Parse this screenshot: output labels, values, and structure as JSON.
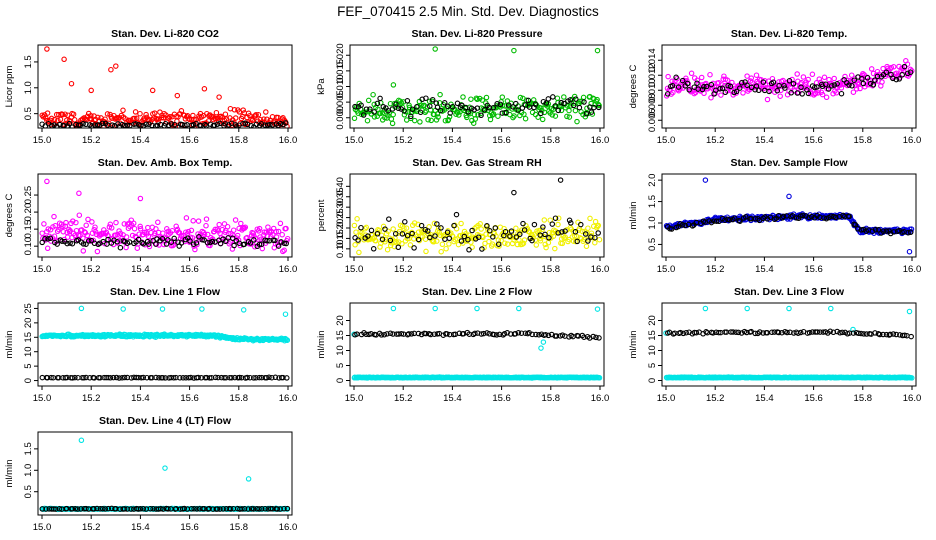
{
  "figure": {
    "title": "FEF_070415  2.5 Min. Std. Dev. Diagnostics"
  },
  "chart_data": [
    {
      "key": "co2",
      "type": "scatter",
      "title": "Stan. Dev. Li-820 CO2",
      "ylabel": "Licor ppm",
      "xlim": [
        15.0,
        16.0
      ],
      "ylim": [
        0.3,
        1.75
      ],
      "xticks": [
        15.0,
        15.2,
        15.4,
        15.6,
        15.8,
        16.0
      ],
      "yticks": [
        0.5,
        1.0,
        1.5
      ],
      "ytick_labels": [
        "0.5",
        "1.0",
        "1.5"
      ],
      "series": [
        {
          "name": "red",
          "color": "#ff0000",
          "gen": {
            "base": [
              [
                15.0,
                0.4
              ],
              [
                16.0,
                0.4
              ]
            ],
            "noise": 0.12,
            "spikes": [
              [
                15.02,
                1.75
              ],
              [
                15.09,
                1.55
              ],
              [
                15.28,
                1.35
              ],
              [
                15.3,
                1.42
              ],
              [
                15.12,
                1.08
              ],
              [
                15.2,
                0.95
              ],
              [
                15.45,
                0.95
              ],
              [
                15.55,
                0.85
              ],
              [
                15.66,
                0.98
              ],
              [
                15.72,
                0.82
              ]
            ],
            "n": 230,
            "seed": 3
          }
        },
        {
          "name": "black",
          "color": "#000000",
          "gen": {
            "base": [
              [
                15.0,
                0.28
              ],
              [
                16.0,
                0.28
              ]
            ],
            "noise": 0.03,
            "n": 90,
            "seed": 4
          }
        }
      ]
    },
    {
      "key": "pressure",
      "type": "scatter",
      "title": "Stan. Dev. Li-820 Pressure",
      "ylabel": "kPa",
      "xlim": [
        15.0,
        16.0
      ],
      "ylim": [
        -0.002,
        0.022
      ],
      "xticks": [
        15.0,
        15.2,
        15.4,
        15.6,
        15.8,
        16.0
      ],
      "yticks": [
        0.0,
        0.005,
        0.01,
        0.015,
        0.02
      ],
      "ytick_labels": [
        "0.000",
        "0.005",
        "0.010",
        "0.015",
        "0.020"
      ],
      "series": [
        {
          "name": "green",
          "color": "#00bb00",
          "gen": {
            "base": [
              [
                15.0,
                0.0025
              ],
              [
                16.0,
                0.0035
              ]
            ],
            "noise": 0.0032,
            "spikes": [
              [
                15.16,
                0.0105
              ],
              [
                15.33,
                0.022
              ],
              [
                15.65,
                0.0215
              ],
              [
                15.99,
                0.0215
              ]
            ],
            "n": 240,
            "seed": 7
          }
        },
        {
          "name": "black",
          "color": "#000000",
          "gen": {
            "base": [
              [
                15.0,
                0.0028
              ],
              [
                16.0,
                0.0035
              ]
            ],
            "noise": 0.0025,
            "n": 80,
            "seed": 8
          }
        }
      ]
    },
    {
      "key": "temp",
      "type": "scatter",
      "title": "Stan. Dev. Li-820 Temp.",
      "ylabel": "degrees C",
      "xlim": [
        15.0,
        16.0
      ],
      "ylim": [
        0.0055,
        0.0155
      ],
      "xticks": [
        15.0,
        15.2,
        15.4,
        15.6,
        15.8,
        16.0
      ],
      "yticks": [
        0.006,
        0.008,
        0.01,
        0.012,
        0.014
      ],
      "ytick_labels": [
        "0.006",
        "0.008",
        "0.010",
        "0.012",
        "0.014"
      ],
      "series": [
        {
          "name": "magenta",
          "color": "#ff00ff",
          "gen": {
            "base": [
              [
                15.0,
                0.0105
              ],
              [
                15.7,
                0.0105
              ],
              [
                16.0,
                0.0128
              ]
            ],
            "noise": 0.0012,
            "n": 260,
            "seed": 11
          }
        },
        {
          "name": "black",
          "color": "#000000",
          "gen": {
            "base": [
              [
                15.0,
                0.0105
              ],
              [
                15.7,
                0.0104
              ],
              [
                16.0,
                0.0128
              ]
            ],
            "noise": 0.0009,
            "n": 85,
            "seed": 12
          }
        }
      ]
    },
    {
      "key": "ambbox",
      "type": "scatter",
      "title": "Stan. Dev. Amb. Box Temp.",
      "ylabel": "degrees C",
      "xlim": [
        15.0,
        16.0
      ],
      "ylim": [
        0.08,
        0.3
      ],
      "xticks": [
        15.0,
        15.2,
        15.4,
        15.6,
        15.8,
        16.0
      ],
      "yticks": [
        0.1,
        0.15,
        0.2,
        0.25
      ],
      "ytick_labels": [
        "0.10",
        "0.15",
        "0.20",
        "0.25"
      ],
      "series": [
        {
          "name": "magenta",
          "color": "#ff00ff",
          "gen": {
            "base": [
              [
                15.0,
                0.14
              ],
              [
                16.0,
                0.13
              ]
            ],
            "noise": 0.035,
            "spikes": [
              [
                15.02,
                0.29
              ],
              [
                15.15,
                0.255
              ],
              [
                15.4,
                0.24
              ]
            ],
            "n": 280,
            "seed": 15
          }
        },
        {
          "name": "black",
          "color": "#000000",
          "gen": {
            "base": [
              [
                15.0,
                0.112
              ],
              [
                16.0,
                0.112
              ]
            ],
            "noise": 0.01,
            "n": 90,
            "seed": 16
          }
        }
      ]
    },
    {
      "key": "rh",
      "type": "scatter",
      "title": "Stan. Dev. Gas Stream RH",
      "ylabel": "percent",
      "xlim": [
        15.0,
        16.0
      ],
      "ylim": [
        0.08,
        0.44
      ],
      "xticks": [
        15.0,
        15.2,
        15.4,
        15.6,
        15.8,
        16.0
      ],
      "yticks": [
        0.1,
        0.15,
        0.2,
        0.25,
        0.3,
        0.35,
        0.4
      ],
      "ytick_labels": [
        "0.10",
        "0.15",
        "0.20",
        "0.25",
        "0.30",
        "0.35",
        "0.40"
      ],
      "series": [
        {
          "name": "yellow",
          "color": "#f0f000",
          "gen": {
            "base": [
              [
                15.0,
                0.16
              ],
              [
                16.0,
                0.17
              ]
            ],
            "noise": 0.055,
            "n": 260,
            "seed": 19
          }
        },
        {
          "name": "black",
          "color": "#000000",
          "gen": {
            "base": [
              [
                15.0,
                0.17
              ],
              [
                16.0,
                0.18
              ]
            ],
            "noise": 0.055,
            "spikes": [
              [
                15.84,
                0.43
              ],
              [
                15.65,
                0.37
              ]
            ],
            "n": 75,
            "seed": 20
          }
        }
      ]
    },
    {
      "key": "sampleflow",
      "type": "scatter",
      "title": "Stan. Dev. Sample Flow",
      "ylabel": "ml/min",
      "xlim": [
        15.0,
        16.0
      ],
      "ylim": [
        0.3,
        2.05
      ],
      "xticks": [
        15.0,
        15.2,
        15.4,
        15.6,
        15.8,
        16.0
      ],
      "yticks": [
        0.5,
        1.0,
        1.5,
        2.0
      ],
      "ytick_labels": [
        "0.5",
        "1.0",
        "1.5",
        "2.0"
      ],
      "series": [
        {
          "name": "blue",
          "color": "#0000dd",
          "gen": {
            "base": [
              [
                15.0,
                0.9
              ],
              [
                15.2,
                1.08
              ],
              [
                15.5,
                1.15
              ],
              [
                15.74,
                1.15
              ],
              [
                15.79,
                0.82
              ],
              [
                16.0,
                0.82
              ]
            ],
            "noise": 0.045,
            "spikes": [
              [
                15.16,
                2.0
              ],
              [
                15.5,
                1.62
              ],
              [
                15.99,
                0.33
              ]
            ],
            "n": 300,
            "seed": 23
          }
        },
        {
          "name": "black",
          "color": "#000000",
          "gen": {
            "base": [
              [
                15.0,
                0.88
              ],
              [
                15.2,
                1.06
              ],
              [
                15.5,
                1.14
              ],
              [
                15.74,
                1.14
              ],
              [
                15.79,
                0.82
              ],
              [
                16.0,
                0.8
              ]
            ],
            "noise": 0.04,
            "n": 90,
            "seed": 24
          }
        }
      ]
    },
    {
      "key": "line1",
      "type": "scatter",
      "title": "Stan. Dev. Line 1 Flow",
      "ylabel": "ml/min",
      "xlim": [
        15.0,
        16.0
      ],
      "ylim": [
        -0.5,
        25.5
      ],
      "xticks": [
        15.0,
        15.2,
        15.4,
        15.6,
        15.8,
        16.0
      ],
      "yticks": [
        0,
        5,
        10,
        15,
        20,
        25
      ],
      "ytick_labels": [
        "0",
        "5",
        "10",
        "15",
        "20",
        "25"
      ],
      "series": [
        {
          "name": "cyan",
          "color": "#00e5e5",
          "gen": {
            "base": [
              [
                15.0,
                15.5
              ],
              [
                15.7,
                15.6
              ],
              [
                15.8,
                14.3
              ],
              [
                16.0,
                14.2
              ]
            ],
            "noise": 0.35,
            "spikes": [
              [
                15.16,
                25.0
              ],
              [
                15.33,
                24.8
              ],
              [
                15.49,
                24.8
              ],
              [
                15.65,
                24.8
              ],
              [
                15.82,
                24.5
              ],
              [
                15.99,
                23.0
              ]
            ],
            "n": 330,
            "seed": 27
          }
        },
        {
          "name": "black",
          "color": "#000000",
          "gen": {
            "base": [
              [
                15.0,
                1.0
              ],
              [
                16.0,
                1.0
              ]
            ],
            "noise": 0.08,
            "n": 90,
            "seed": 28
          }
        }
      ]
    },
    {
      "key": "line2",
      "type": "scatter",
      "title": "Stan. Dev. Line 2 Flow",
      "ylabel": "ml/min",
      "xlim": [
        15.0,
        16.0
      ],
      "ylim": [
        -0.5,
        24.5
      ],
      "xticks": [
        15.0,
        15.2,
        15.4,
        15.6,
        15.8,
        16.0
      ],
      "yticks": [
        0,
        5,
        10,
        15,
        20
      ],
      "ytick_labels": [
        "0",
        "5",
        "10",
        "15",
        "20"
      ],
      "series": [
        {
          "name": "cyan",
          "color": "#00e5e5",
          "gen": {
            "base": [
              [
                15.0,
                1.0
              ],
              [
                16.0,
                1.0
              ]
            ],
            "noise": 0.1,
            "spikes": [
              [
                15.0,
                15.4
              ],
              [
                15.16,
                24.0
              ],
              [
                15.33,
                24.0
              ],
              [
                15.5,
                24.0
              ],
              [
                15.67,
                24.0
              ],
              [
                15.76,
                10.8
              ],
              [
                15.77,
                12.8
              ],
              [
                15.99,
                23.8
              ]
            ],
            "n": 330,
            "seed": 31
          }
        },
        {
          "name": "black",
          "color": "#000000",
          "gen": {
            "base": [
              [
                15.0,
                15.5
              ],
              [
                15.7,
                15.6
              ],
              [
                16.0,
                14.3
              ]
            ],
            "noise": 0.3,
            "n": 90,
            "seed": 32
          }
        }
      ]
    },
    {
      "key": "line3",
      "type": "scatter",
      "title": "Stan. Dev. Line 3 Flow",
      "ylabel": "ml/min",
      "xlim": [
        15.0,
        16.0
      ],
      "ylim": [
        -0.5,
        24.5
      ],
      "xticks": [
        15.0,
        15.2,
        15.4,
        15.6,
        15.8,
        16.0
      ],
      "yticks": [
        0,
        5,
        10,
        15,
        20
      ],
      "ytick_labels": [
        "0",
        "5",
        "10",
        "15",
        "20"
      ],
      "series": [
        {
          "name": "cyan",
          "color": "#00e5e5",
          "gen": {
            "base": [
              [
                15.0,
                1.0
              ],
              [
                16.0,
                1.0
              ]
            ],
            "noise": 0.1,
            "spikes": [
              [
                15.0,
                15.8
              ],
              [
                15.16,
                24.0
              ],
              [
                15.33,
                24.0
              ],
              [
                15.5,
                24.0
              ],
              [
                15.67,
                24.0
              ],
              [
                15.76,
                17.0
              ],
              [
                15.99,
                23.0
              ]
            ],
            "n": 330,
            "seed": 35
          }
        },
        {
          "name": "black",
          "color": "#000000",
          "gen": {
            "base": [
              [
                15.0,
                15.8
              ],
              [
                15.7,
                16.2
              ],
              [
                16.0,
                14.9
              ]
            ],
            "noise": 0.3,
            "n": 90,
            "seed": 36
          }
        }
      ]
    },
    {
      "key": "line4",
      "type": "scatter",
      "title": "Stan. Dev. Line 4 (LT) Flow",
      "ylabel": "ml/min",
      "xlim": [
        15.0,
        16.0
      ],
      "ylim": [
        0.05,
        1.8
      ],
      "xticks": [
        15.0,
        15.2,
        15.4,
        15.6,
        15.8,
        16.0
      ],
      "yticks": [
        0.5,
        1.0,
        1.5
      ],
      "ytick_labels": [
        "0.5",
        "1.0",
        "1.5"
      ],
      "series": [
        {
          "name": "cyan",
          "color": "#00e5e5",
          "gen": {
            "base": [
              [
                15.0,
                0.1
              ],
              [
                16.0,
                0.1
              ]
            ],
            "noise": 0.008,
            "spikes": [
              [
                15.16,
                1.7
              ],
              [
                15.5,
                1.05
              ],
              [
                15.84,
                0.8
              ]
            ],
            "n": 330,
            "seed": 39
          }
        },
        {
          "name": "black",
          "color": "#000000",
          "gen": {
            "base": [
              [
                15.0,
                0.1
              ],
              [
                16.0,
                0.1
              ]
            ],
            "noise": 0.006,
            "n": 90,
            "seed": 40
          }
        }
      ]
    }
  ]
}
